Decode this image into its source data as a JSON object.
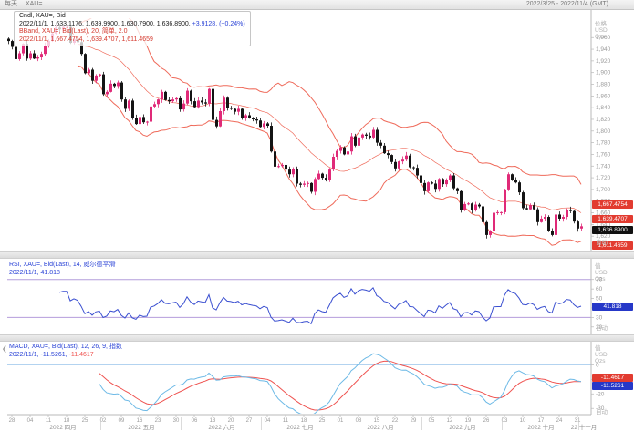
{
  "topbar": {
    "interval": "每天",
    "symbol": "XAU=",
    "date_range": "2022/3/25 - 2022/11/4 (GMT)"
  },
  "main_legend": {
    "line1": "Cndl, XAU=, Bid",
    "line2_ohlc": "2022/11/1, 1,633.1176, 1,639.9900, 1,630.7900, 1,636.8900,",
    "line2_change": "+3.9128, (+0.24%)",
    "line3": "BBand, XAU=, Bid(Last), 20, 简单, 2.0",
    "line4": "2022/11/1, 1,667.4754, 1,639.4707, 1,611.4659"
  },
  "rsi_legend": {
    "line1": "RSI, XAU=, Bid(Last), 14, 威尔德平滑",
    "line2": "2022/11/1, 41.818"
  },
  "macd_legend": {
    "collapse_icon": "❮",
    "line1": "MACD, XAU=, Bid(Last), 12, 26, 9, 指数",
    "line2_macd": "2022/11/1, -11.5261,",
    "line2_signal": "-11.4617"
  },
  "axes": {
    "price_header": [
      "价格",
      "USD",
      "Ozs"
    ],
    "value_header": [
      "值",
      "USD",
      "Ozs"
    ],
    "auto_label": "自动",
    "main_ticks": [
      1960,
      1940,
      1920,
      1900,
      1880,
      1860,
      1840,
      1820,
      1800,
      1780,
      1760,
      1740,
      1720,
      1700,
      1680,
      1660,
      1640,
      1620
    ],
    "rsi_ticks": [
      70,
      60,
      50,
      40,
      30,
      20
    ],
    "macd_ticks": [
      0,
      -10,
      -20,
      -30
    ]
  },
  "badges": {
    "bb_upper": {
      "label": "1,667.4754",
      "value": 1667.4754
    },
    "bb_mid": {
      "label": "1,639.4707",
      "value": 1639.4707
    },
    "price": {
      "label": "1,636.8900",
      "value": 1636.89
    },
    "bb_lower": {
      "label": "1,611.4659",
      "value": 1611.4659
    },
    "rsi": {
      "label": "41.818",
      "value": 41.818
    },
    "macd_signal": {
      "label": "-11.4617",
      "value": -11.4617
    },
    "macd": {
      "label": "-11.5261",
      "value": -11.5261
    }
  },
  "x_axis": {
    "monday_indices": [
      1,
      6,
      11,
      16,
      21,
      26,
      31,
      36,
      41,
      46,
      51,
      56,
      61,
      66,
      71,
      76,
      81,
      86,
      91,
      96,
      101,
      106,
      111,
      116,
      121,
      126,
      131,
      136,
      141,
      146,
      151,
      156
    ],
    "day_labels": [
      "28",
      "04",
      "11",
      "18",
      "25",
      "02",
      "09",
      "16",
      "23",
      "30",
      "06",
      "13",
      "20",
      "27",
      "04",
      "11",
      "18",
      "25",
      "01",
      "08",
      "15",
      "22",
      "29",
      "05",
      "12",
      "19",
      "26",
      "03",
      "10",
      "17",
      "24",
      "31"
    ],
    "months": [
      {
        "label": "2022 四月",
        "start": 5,
        "end": 25
      },
      {
        "label": "2022 五月",
        "start": 26,
        "end": 47
      },
      {
        "label": "2022 六月",
        "start": 48,
        "end": 69
      },
      {
        "label": "2022 七月",
        "start": 70,
        "end": 90
      },
      {
        "label": "2022 八月",
        "start": 91,
        "end": 113
      },
      {
        "label": "2022 九月",
        "start": 114,
        "end": 135
      },
      {
        "label": "2022 十月",
        "start": 136,
        "end": 156
      },
      {
        "label": "22 十一月",
        "start": 157,
        "end": 160
      }
    ]
  },
  "colors": {
    "candle_up": "#e02a78",
    "candle_down": "#141414",
    "bollinger": "#ef6a5a",
    "rsi_line": "#3a4fd0",
    "rsi_levels": "#b49ddc",
    "macd_line": "#6cb9e6",
    "signal_line": "#ef5350",
    "zero_line": "#a8cdee",
    "badge_red": "#e23b30",
    "badge_blue": "#2638c8",
    "badge_black": "#111111",
    "tick_text": "#9a9a9a"
  },
  "chart_data": {
    "type": "candlestick",
    "symbol": "XAU=",
    "frequency": "daily (weekdays)",
    "first_date": "2022-03-25",
    "last_date": "2022-11-01",
    "price_axis_range": [
      1600,
      1990
    ],
    "rsi_axis_range": [
      15,
      88
    ],
    "macd_axis_range": [
      -33,
      14
    ],
    "indicators": {
      "bollinger": {
        "period": 20,
        "type": "简单",
        "width": 2.0
      },
      "rsi": {
        "period": 14,
        "smoothing": "威尔德平滑",
        "levels": [
          70,
          30
        ]
      },
      "macd": {
        "fast": 12,
        "slow": 26,
        "signal": 9,
        "type": "指数"
      }
    },
    "closes": [
      1954,
      1944,
      1923,
      1933,
      1949,
      1924,
      1933,
      1924,
      1926,
      1932,
      1946,
      1954,
      1967,
      1977,
      1974,
      1978,
      1978,
      1951,
      1957,
      1952,
      1932,
      1899,
      1905,
      1886,
      1895,
      1897,
      1863,
      1867,
      1881,
      1877,
      1883,
      1854,
      1838,
      1852,
      1822,
      1812,
      1824,
      1815,
      1816,
      1842,
      1846,
      1854,
      1867,
      1853,
      1851,
      1854,
      1856,
      1837,
      1847,
      1869,
      1851,
      1841,
      1852,
      1849,
      1847,
      1872,
      1819,
      1808,
      1834,
      1857,
      1840,
      1838,
      1833,
      1838,
      1823,
      1827,
      1823,
      1820,
      1818,
      1807,
      1813,
      1809,
      1765,
      1739,
      1740,
      1742,
      1734,
      1726,
      1735,
      1710,
      1708,
      1710,
      1711,
      1696,
      1718,
      1727,
      1720,
      1717,
      1734,
      1756,
      1766,
      1772,
      1760,
      1765,
      1791,
      1775,
      1789,
      1794,
      1792,
      1789,
      1802,
      1780,
      1775,
      1762,
      1759,
      1747,
      1736,
      1748,
      1751,
      1758,
      1738,
      1737,
      1724,
      1711,
      1697,
      1712,
      1710,
      1701,
      1718,
      1709,
      1717,
      1724,
      1702,
      1697,
      1665,
      1675,
      1676,
      1664,
      1674,
      1671,
      1644,
      1622,
      1629,
      1660,
      1661,
      1661,
      1700,
      1726,
      1716,
      1712,
      1695,
      1668,
      1666,
      1673,
      1666,
      1644,
      1650,
      1653,
      1629,
      1622,
      1657,
      1650,
      1653,
      1665,
      1663,
      1645,
      1633.12,
      1636.89
    ]
  }
}
